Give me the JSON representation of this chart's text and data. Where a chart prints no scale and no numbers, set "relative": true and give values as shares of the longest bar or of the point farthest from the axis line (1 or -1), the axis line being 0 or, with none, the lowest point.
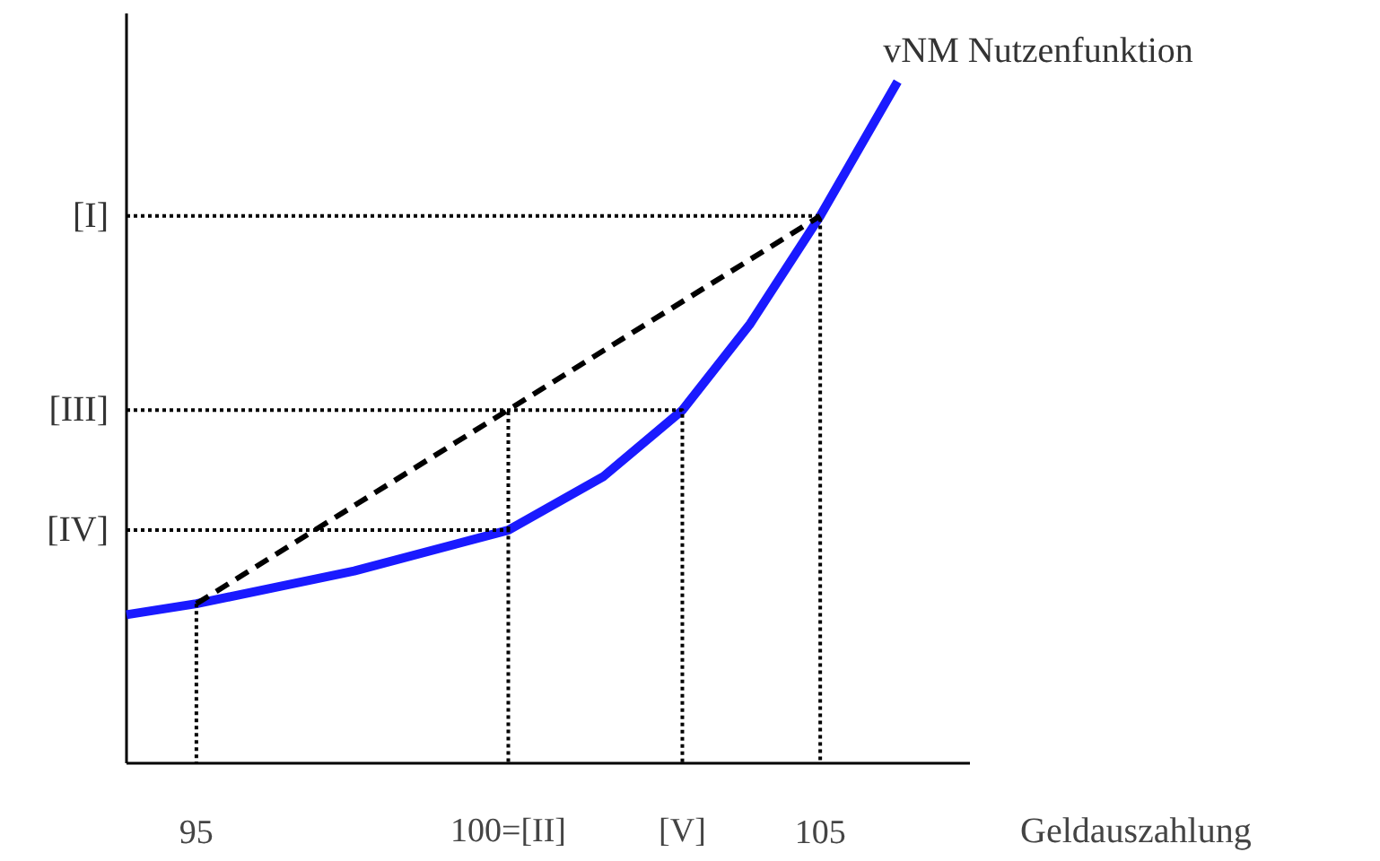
{
  "chart_data": {
    "type": "line",
    "relative": true,
    "xlabel": "Geldauszahlung",
    "xlim": [
      93.88,
      107.4
    ],
    "xticks": [
      95,
      {
        "value": 100,
        "label": "100=[II]"
      },
      {
        "value": 102.79,
        "label": "[V]"
      },
      105
    ],
    "grid": false,
    "marker": "none",
    "series": [
      {
        "name": "vNM Nutzenfunktion",
        "color": "#1a1aff",
        "line_style": "solid",
        "x": [
          93.88,
          95,
          97.53,
          100,
          101.53,
          102.79,
          103.88,
          105,
          106.24
        ],
        "values": [
          0.218,
          0.234,
          0.282,
          0.342,
          0.421,
          0.518,
          0.645,
          0.803,
          1.0
        ]
      },
      {
        "color": "#000000",
        "line_style": "dashed",
        "x": [
          95,
          105
        ],
        "values": [
          0.234,
          0.803
        ]
      },
      {
        "color": "#000000",
        "line_style": "dotted",
        "name": "[I]",
        "x": [
          93.88,
          105,
          105
        ],
        "values": [
          0.803,
          0.803,
          0
        ]
      },
      {
        "color": "#000000",
        "line_style": "dotted",
        "name": "[III]",
        "x": [
          93.88,
          102.79,
          102.79
        ],
        "values": [
          0.518,
          0.518,
          0
        ]
      },
      {
        "color": "#000000",
        "line_style": "dotted",
        "name": "[IV]",
        "x": [
          93.88,
          100,
          100
        ],
        "values": [
          0.342,
          0.342,
          0
        ]
      },
      {
        "color": "#000000",
        "line_style": "dotted",
        "x": [
          100,
          100
        ],
        "values": [
          0.342,
          0.518
        ]
      },
      {
        "color": "#000000",
        "line_style": "dotted",
        "x": [
          95,
          95
        ],
        "values": [
          0.234,
          0
        ]
      }
    ]
  }
}
